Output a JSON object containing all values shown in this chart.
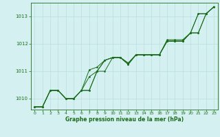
{
  "background_color": "#d4f0f0",
  "grid_color": "#b8dede",
  "line_color": "#1a6b1a",
  "marker_color": "#1a6b1a",
  "xlabel": "Graphe pression niveau de la mer (hPa)",
  "xlabel_color": "#1a6b1a",
  "xlim": [
    -0.5,
    23.5
  ],
  "ylim": [
    1009.6,
    1013.5
  ],
  "yticks": [
    1010,
    1011,
    1012,
    1013
  ],
  "xticks": [
    0,
    1,
    2,
    3,
    4,
    5,
    6,
    7,
    8,
    9,
    10,
    11,
    12,
    13,
    14,
    15,
    16,
    17,
    18,
    19,
    20,
    21,
    22,
    23
  ],
  "series": [
    [
      1009.7,
      1009.7,
      1010.3,
      1010.3,
      1010.0,
      1010.0,
      1010.3,
      1010.3,
      1011.0,
      1011.4,
      1011.5,
      1011.5,
      1011.3,
      1011.6,
      1011.6,
      1011.6,
      1011.6,
      1012.1,
      1012.1,
      1012.1,
      1012.4,
      1013.1,
      1013.1,
      1013.35
    ],
    [
      1009.7,
      1009.7,
      1010.3,
      1010.3,
      1010.0,
      1010.0,
      1010.3,
      1010.8,
      1011.0,
      1011.4,
      1011.5,
      1011.5,
      1011.25,
      1011.6,
      1011.6,
      1011.6,
      1011.6,
      1012.1,
      1012.1,
      1012.1,
      1012.4,
      1012.4,
      1013.1,
      1013.35
    ],
    [
      1009.7,
      1009.7,
      1010.3,
      1010.3,
      1010.0,
      1010.0,
      1010.3,
      1011.05,
      1011.15,
      1011.4,
      1011.5,
      1011.5,
      1011.25,
      1011.6,
      1011.6,
      1011.6,
      1011.6,
      1012.1,
      1012.1,
      1012.1,
      1012.4,
      1012.4,
      1013.1,
      1013.35
    ],
    [
      1009.7,
      1009.7,
      1010.3,
      1010.3,
      1010.0,
      1010.0,
      1010.3,
      1010.3,
      1011.0,
      1011.0,
      1011.5,
      1011.5,
      1011.3,
      1011.6,
      1011.6,
      1011.6,
      1011.6,
      1012.15,
      1012.15,
      1012.15,
      1012.4,
      1013.1,
      1013.1,
      1013.35
    ]
  ]
}
